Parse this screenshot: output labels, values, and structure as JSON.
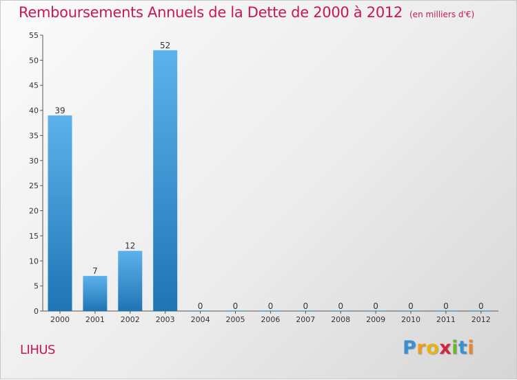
{
  "header": {
    "title": "Remboursements Annuels de la Dette de 2000 à 2012",
    "unit_note": "(en milliers d'€)"
  },
  "footer": {
    "commune": "LIHUS",
    "brand_letters": [
      "P",
      "r",
      "o",
      "x",
      "i",
      "t",
      "i"
    ]
  },
  "colors": {
    "title": "#c8184f",
    "bar_top": "#5db2ec",
    "bar_bottom": "#1f74b4",
    "axis": "#555555"
  },
  "chart_data": {
    "type": "bar",
    "title": "Remboursements Annuels de la Dette de 2000 à 2012",
    "xlabel": "",
    "ylabel": "",
    "categories": [
      "2000",
      "2001",
      "2002",
      "2003",
      "2004",
      "2005",
      "2006",
      "2007",
      "2008",
      "2009",
      "2010",
      "2011",
      "2012"
    ],
    "values": [
      39,
      7,
      12,
      52,
      0,
      0,
      0,
      0,
      0,
      0,
      0,
      0,
      0
    ],
    "ylim": [
      0,
      55
    ],
    "yticks": [
      0,
      5,
      10,
      15,
      20,
      25,
      30,
      35,
      40,
      45,
      50,
      55
    ],
    "grid": false,
    "legend": "none"
  }
}
